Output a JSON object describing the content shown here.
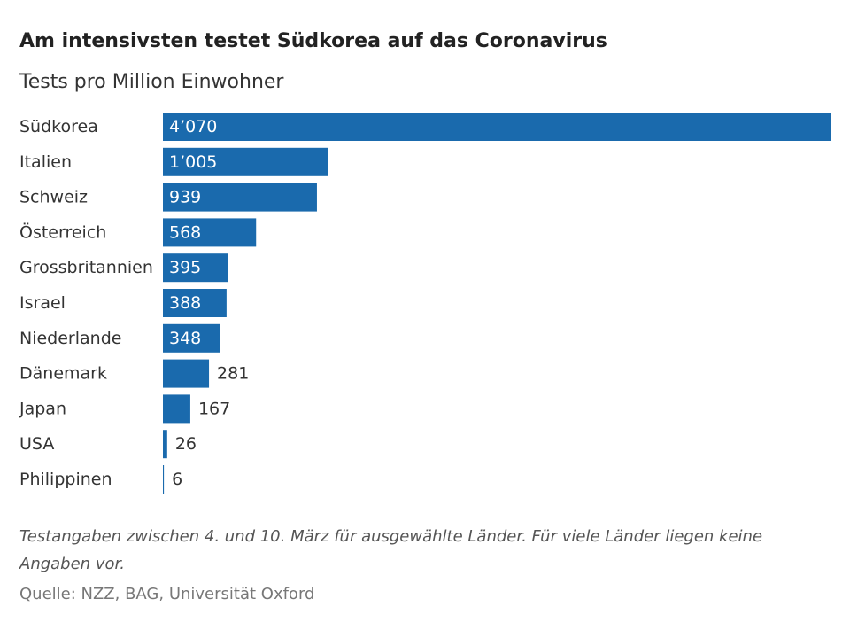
{
  "header": {
    "title": "Am intensivsten testet Südkorea auf das Coronavirus",
    "subtitle": "Tests pro Million Einwohner"
  },
  "chart_data": {
    "type": "bar",
    "orientation": "horizontal",
    "categories": [
      "Südkorea",
      "Italien",
      "Schweiz",
      "Österreich",
      "Grossbritannien",
      "Israel",
      "Niederlande",
      "Dänemark",
      "Japan",
      "USA",
      "Philippinen"
    ],
    "values": [
      4070,
      1005,
      939,
      568,
      395,
      388,
      348,
      281,
      167,
      26,
      6
    ],
    "value_labels": [
      "4’070",
      "1’005",
      "939",
      "568",
      "395",
      "388",
      "348",
      "281",
      "167",
      "26",
      "6"
    ],
    "xlim": [
      0,
      4070
    ],
    "grid": false,
    "bar_color": "#1a6aad"
  },
  "footer": {
    "note": "Testangaben zwischen 4. und 10. März für ausgewählte Länder. Für viele Länder liegen keine Angaben vor.",
    "source": "Quelle: NZZ, BAG, Universität Oxford"
  }
}
